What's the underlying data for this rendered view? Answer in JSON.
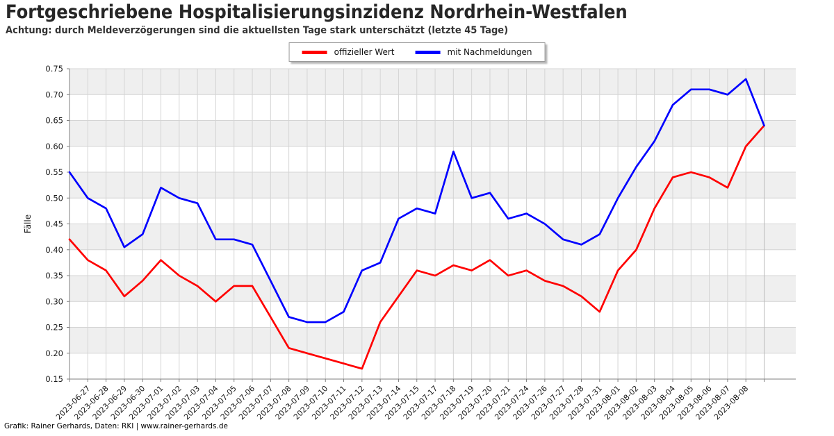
{
  "chart_data": {
    "type": "line",
    "title": "Fortgeschriebene Hospitalisierungsinzidenz Nordrhein-Westfalen",
    "subtitle": "Achtung: durch Meldeverzögerungen sind die aktuellsten Tage stark unterschätzt (letzte 45 Tage)",
    "ylabel": "Fälle",
    "ylim": [
      0.15,
      0.75
    ],
    "ytick_step": 0.05,
    "grid": true,
    "legend_position": "top-center",
    "background_bands": {
      "color": "#efefef",
      "ranges": [
        [
          0.2,
          0.25
        ],
        [
          0.3,
          0.35
        ],
        [
          0.4,
          0.45
        ],
        [
          0.5,
          0.55
        ],
        [
          0.6,
          0.65
        ],
        [
          0.7,
          0.75
        ]
      ]
    },
    "x_tick_labels": [
      "",
      "2023-06-27",
      "2023-06-28",
      "2023-06-29",
      "2023-06-30",
      "2023-07-01",
      "2023-07-02",
      "2023-07-03",
      "2023-07-04",
      "2023-07-05",
      "2023-07-06",
      "2023-07-07",
      "2023-07-08",
      "2023-07-09",
      "2023-07-10",
      "2023-07-11",
      "2023-07-12",
      "2023-07-13",
      "2023-07-14",
      "2023-07-15",
      "2023-07-17",
      "2023-07-18",
      "2023-07-19",
      "2023-07-20",
      "2023-07-21",
      "2023-07-24",
      "2023-07-26",
      "2023-07-27",
      "2023-07-28",
      "2023-07-31",
      "2023-08-01",
      "2023-08-02",
      "2023-08-03",
      "2023-08-04",
      "2023-08-05",
      "2023-08-06",
      "2023-08-07",
      "2023-08-08",
      ""
    ],
    "note": "first and last data points fall on the plot edges and carry no axis label",
    "series": [
      {
        "name": "offizieller Wert",
        "color": "#ff0000",
        "values": [
          0.42,
          0.38,
          0.36,
          0.31,
          0.34,
          0.38,
          0.35,
          0.33,
          0.3,
          0.33,
          0.33,
          0.27,
          0.21,
          0.2,
          0.19,
          0.18,
          0.17,
          0.26,
          0.31,
          0.36,
          0.35,
          0.37,
          0.36,
          0.38,
          0.35,
          0.36,
          0.34,
          0.33,
          0.31,
          0.28,
          0.36,
          0.4,
          0.48,
          0.54,
          0.55,
          0.54,
          0.52,
          0.6,
          0.64
        ]
      },
      {
        "name": "mit Nachmeldungen",
        "color": "#0000ff",
        "values": [
          0.55,
          0.5,
          0.48,
          0.405,
          0.43,
          0.52,
          0.5,
          0.49,
          0.42,
          0.42,
          0.41,
          0.34,
          0.27,
          0.26,
          0.26,
          0.28,
          0.36,
          0.375,
          0.46,
          0.48,
          0.47,
          0.59,
          0.5,
          0.51,
          0.46,
          0.47,
          0.45,
          0.42,
          0.41,
          0.43,
          0.5,
          0.56,
          0.61,
          0.68,
          0.71,
          0.71,
          0.7,
          0.73,
          0.64
        ]
      }
    ]
  },
  "footer": {
    "credit": "Grafik: Rainer Gerhards, Daten: RKI | www.rainer-gerhards.de"
  }
}
